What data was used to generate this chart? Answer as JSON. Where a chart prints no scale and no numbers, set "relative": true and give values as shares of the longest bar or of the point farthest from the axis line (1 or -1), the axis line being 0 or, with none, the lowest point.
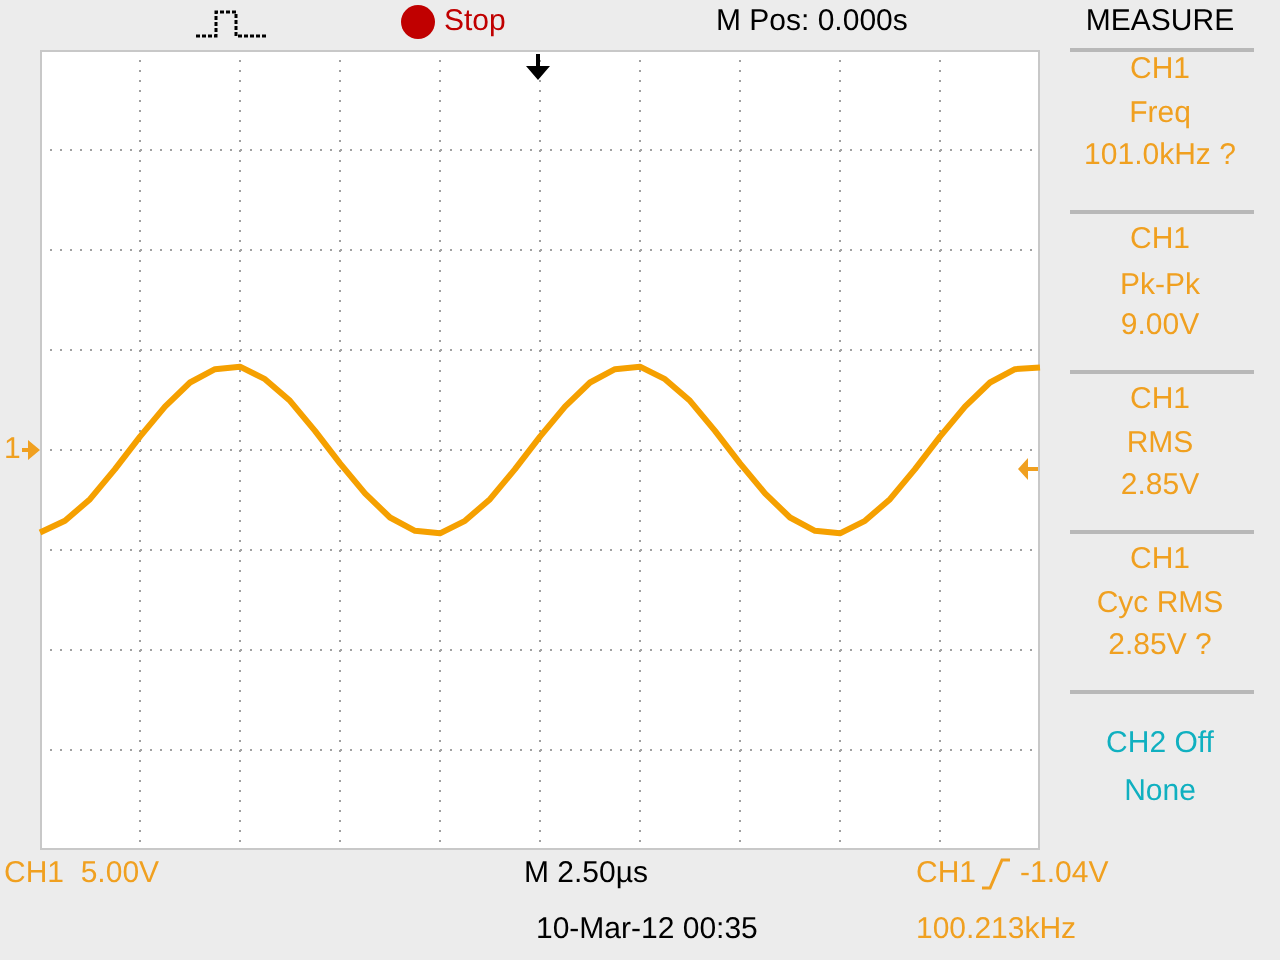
{
  "chart_data": {
    "type": "line",
    "relative": true,
    "grid": true,
    "legend": false,
    "marker": "none",
    "line_style": "solid",
    "categories": [
      null,
      null,
      null,
      null,
      null,
      null,
      null,
      null,
      null,
      null,
      null,
      null,
      null,
      null,
      null,
      null,
      null,
      null,
      null,
      null,
      null,
      null,
      null,
      null,
      null,
      null,
      null,
      null,
      null,
      null,
      null,
      null,
      null,
      null,
      null,
      null,
      null,
      null,
      null,
      null,
      null
    ],
    "series": [
      {
        "color": "#f5a000",
        "values": [
          -0.99,
          -0.85,
          -0.59,
          -0.23,
          0.16,
          0.52,
          0.81,
          0.97,
          1,
          0.85,
          0.59,
          0.23,
          -0.16,
          -0.52,
          -0.81,
          -0.97,
          -1,
          -0.85,
          -0.59,
          -0.23,
          0.16,
          0.52,
          0.81,
          0.97,
          1,
          0.85,
          0.59,
          0.23,
          -0.16,
          -0.52,
          -0.81,
          -0.97,
          -1,
          -0.85,
          -0.59,
          -0.23,
          0.16,
          0.52,
          0.81,
          0.97,
          0.99
        ]
      }
    ],
    "annotations": [
      "Stop",
      "M Pos: 0.000s",
      "MEASURE",
      "CH1",
      "Freq",
      "101.0kHz ?",
      "CH1",
      "Pk-Pk",
      "9.00V",
      "CH1",
      "RMS",
      "2.85V",
      "CH1",
      "Cyc RMS",
      "2.85V ?",
      "CH2 Off",
      "None",
      "CH1  5.00V",
      "M 2.50µs",
      "10-Mar-12 00:35",
      "CH1",
      "-1.04V",
      "100.213kHz",
      "1"
    ]
  }
}
